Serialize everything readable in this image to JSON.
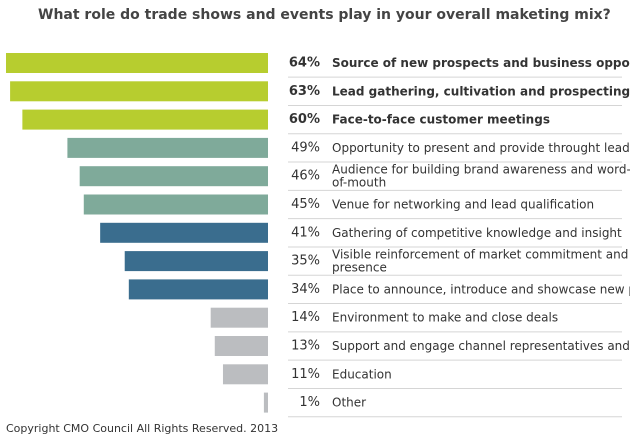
{
  "chart_data": {
    "type": "bar",
    "title": "What role do trade shows and events play in your overall maketing mix?",
    "categories": [
      "Source of new prospects and business opportunities",
      "Lead gathering, cultivation and prospecting opportunity",
      "Face-to-face customer meetings",
      "Opportunity to present and provide throught leadership",
      "Audience for building brand awareness and word-\nof-mouth",
      "Venue for networking and lead qualification",
      "Gathering of competitive knowledge and insight",
      "Visible reinforcement of market commitment and\npresence",
      "Place to announce, introduce and showcase new products",
      "Environment to make and close deals",
      "Support and engage channel representatives and partners",
      "Education",
      "Other"
    ],
    "values": [
      64,
      63,
      60,
      49,
      46,
      45,
      41,
      35,
      34,
      14,
      13,
      11,
      1
    ],
    "value_labels": [
      "64%",
      "63%",
      "60%",
      "49%",
      "46%",
      "45%",
      "41%",
      "35%",
      "34%",
      "14%",
      "13%",
      "11%",
      "1%"
    ],
    "colors": [
      "#b7cd2f",
      "#b7cd2f",
      "#b7cd2f",
      "#7faa9a",
      "#7faa9a",
      "#7faa9a",
      "#3a6d8e",
      "#3a6d8e",
      "#3a6d8e",
      "#bbbdc0",
      "#bbbdc0",
      "#bbbdc0",
      "#bbbdc0"
    ],
    "emphasis": [
      true,
      true,
      true,
      false,
      false,
      false,
      false,
      false,
      false,
      false,
      false,
      false,
      false
    ],
    "footnote": "Copyright CMO Council All Rights Reserved. 2013"
  }
}
